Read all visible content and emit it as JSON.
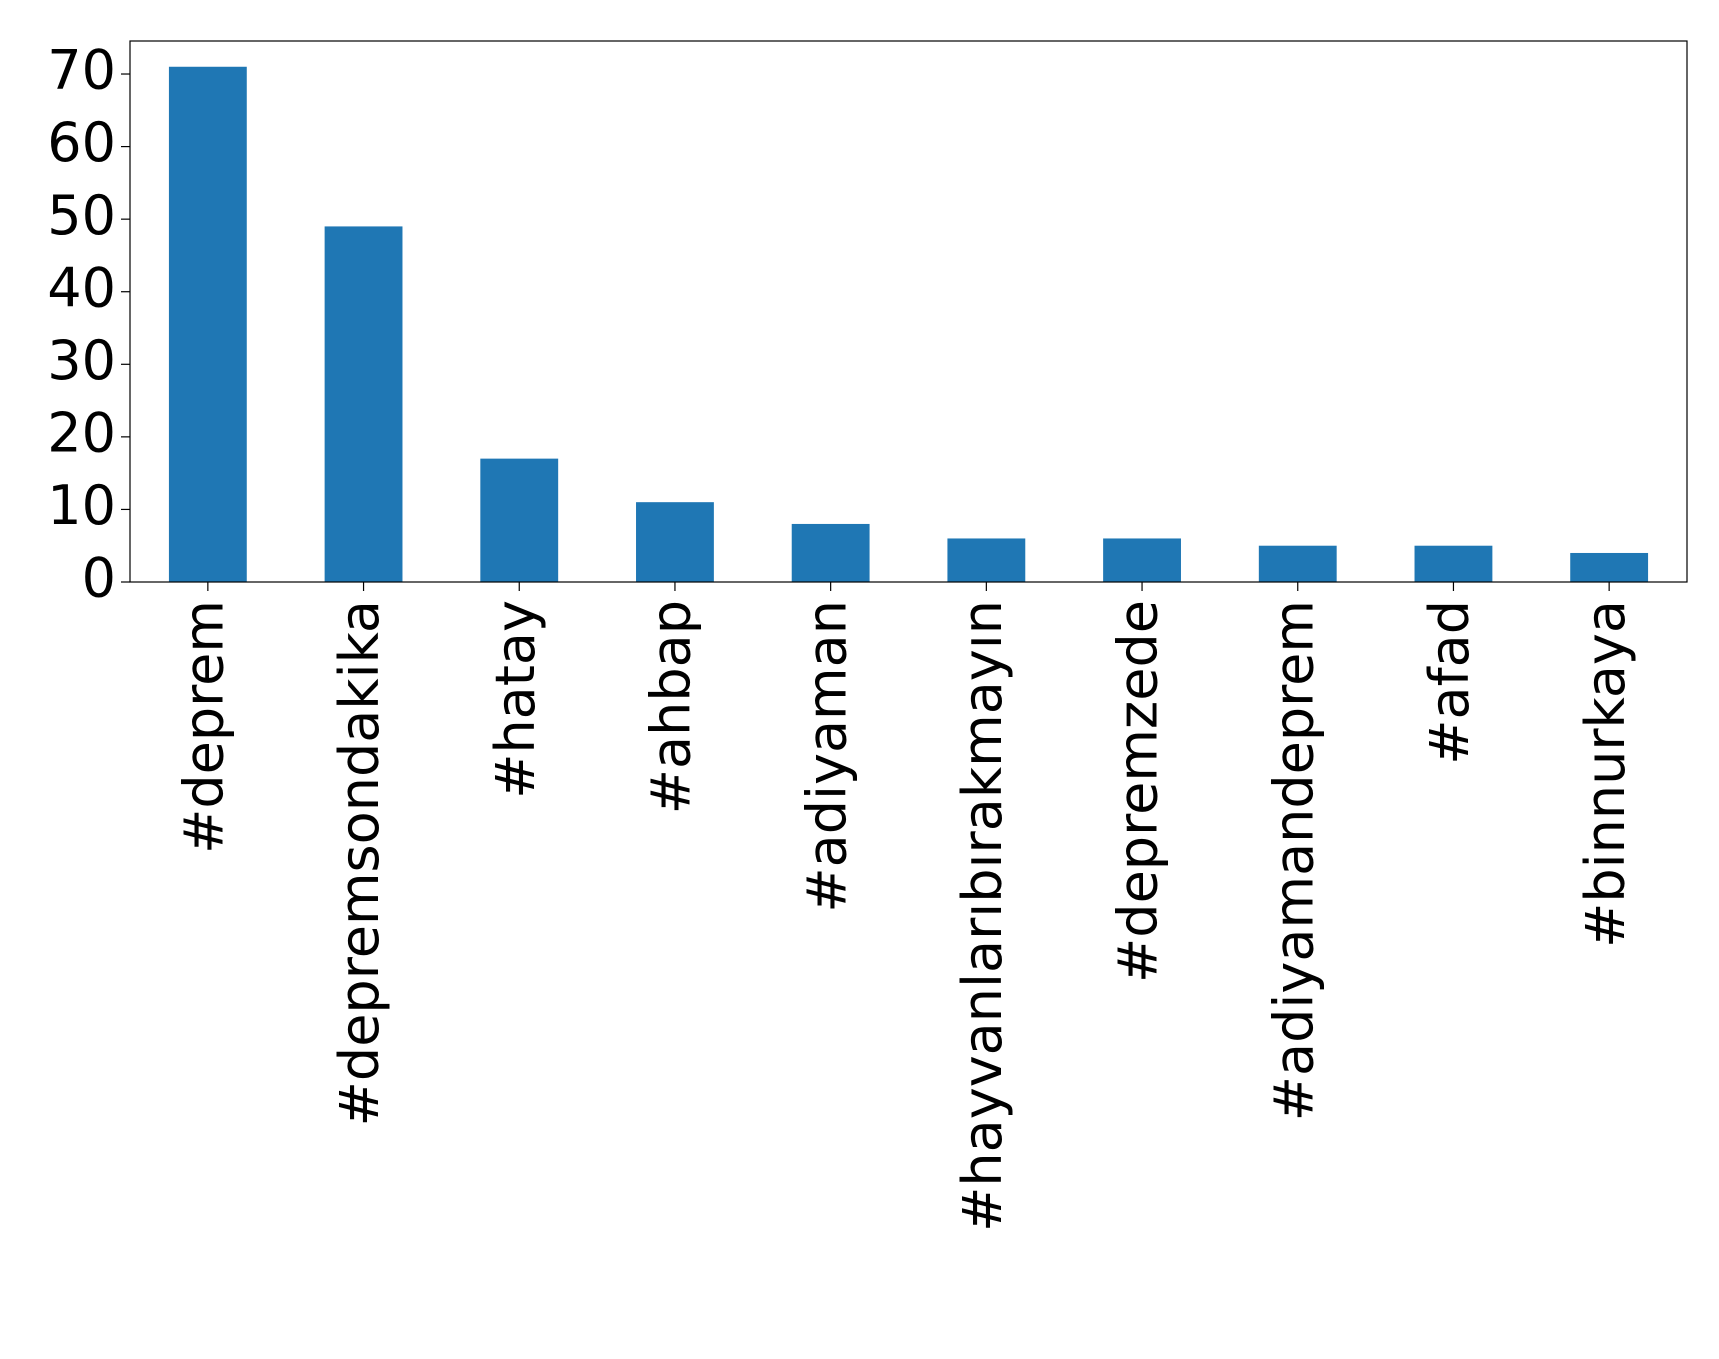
{
  "chart_data": {
    "type": "bar",
    "categories": [
      "#deprem",
      "#depremsondakika",
      "#hatay",
      "#ahbap",
      "#adiyaman",
      "#hayvanlarıbırakmayın",
      "#depremzede",
      "#adiyamandeprem",
      "#afad",
      "#binnurkaya"
    ],
    "values": [
      71,
      49,
      17,
      11,
      8,
      6,
      6,
      5,
      5,
      4
    ],
    "color": "#1f77b4",
    "ylim": [
      0,
      74.55
    ],
    "yticks": [
      0,
      10,
      20,
      30,
      40,
      50,
      60,
      70
    ],
    "grid": false
  }
}
